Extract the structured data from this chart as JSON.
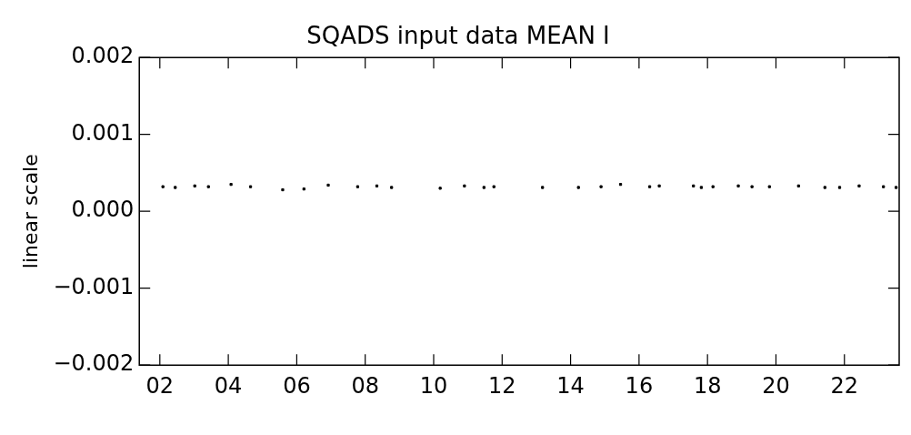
{
  "chart_data": {
    "type": "scatter",
    "title": "SQADS input data MEAN I",
    "ylabel": "linear scale",
    "x": [
      2.09,
      2.45,
      3.02,
      3.42,
      4.08,
      4.65,
      5.59,
      6.21,
      6.92,
      7.78,
      8.34,
      8.77,
      10.19,
      10.9,
      11.47,
      11.76,
      13.18,
      14.23,
      14.89,
      15.46,
      16.31,
      16.59,
      17.59,
      17.82,
      18.16,
      18.9,
      19.3,
      19.81,
      20.66,
      21.43,
      21.86,
      22.43,
      23.14,
      23.51
    ],
    "values": [
      0.00032,
      0.00031,
      0.00033,
      0.00032,
      0.00035,
      0.00032,
      0.00028,
      0.00029,
      0.00034,
      0.00032,
      0.00033,
      0.00031,
      0.0003,
      0.00033,
      0.00031,
      0.00032,
      0.00031,
      0.00031,
      0.00032,
      0.00035,
      0.00032,
      0.00033,
      0.00033,
      0.00031,
      0.00032,
      0.00033,
      0.00032,
      0.00032,
      0.00033,
      0.00031,
      0.00031,
      0.00033,
      0.00032,
      0.00031
    ],
    "color": "#000000",
    "marker": "square",
    "grid": false,
    "legend": false,
    "xlim": [
      1.4,
      23.6
    ],
    "xticks": [
      {
        "value": 2,
        "label": "02"
      },
      {
        "value": 4,
        "label": "04"
      },
      {
        "value": 6,
        "label": "06"
      },
      {
        "value": 8,
        "label": "08"
      },
      {
        "value": 10,
        "label": "10"
      },
      {
        "value": 12,
        "label": "12"
      },
      {
        "value": 14,
        "label": "14"
      },
      {
        "value": 16,
        "label": "16"
      },
      {
        "value": 18,
        "label": "18"
      },
      {
        "value": 20,
        "label": "20"
      },
      {
        "value": 22,
        "label": "22"
      }
    ],
    "ylim": [
      -0.002,
      0.002
    ],
    "yticks": [
      {
        "value": -0.002,
        "label": "−0.002"
      },
      {
        "value": -0.001,
        "label": "−0.001"
      },
      {
        "value": 0,
        "label": "0.000"
      },
      {
        "value": 0.001,
        "label": "0.001"
      },
      {
        "value": 0.002,
        "label": "0.002"
      }
    ]
  }
}
